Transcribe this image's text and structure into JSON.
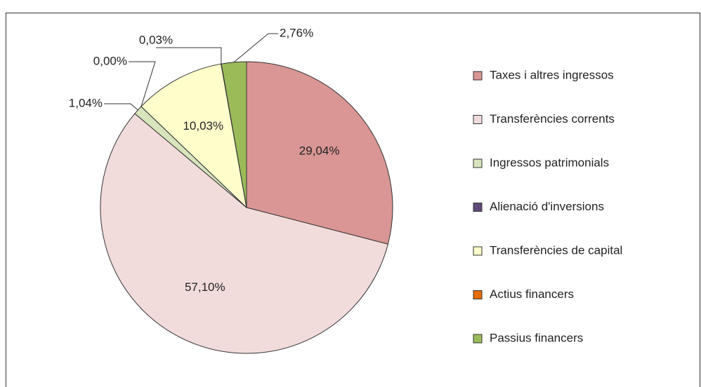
{
  "chart_data": {
    "type": "pie",
    "categories": [
      "Taxes i altres ingressos",
      "Transferències corrents",
      "Ingressos patrimonials",
      "Alienació d'inversions",
      "Transferències de capital",
      "Actius financers",
      "Passius financers"
    ],
    "values": [
      29.04,
      57.1,
      1.04,
      0.0,
      10.03,
      0.03,
      2.76
    ],
    "value_labels": [
      "29,04%",
      "57,10%",
      "1,04%",
      "0,00%",
      "10,03%",
      "0,03%",
      "2,76%"
    ],
    "colors": [
      "#d99694",
      "#f2dcdb",
      "#d7e4bc",
      "#604a7b",
      "#ffffcc",
      "#e46c0a",
      "#9bbb59"
    ],
    "legend": "right"
  }
}
